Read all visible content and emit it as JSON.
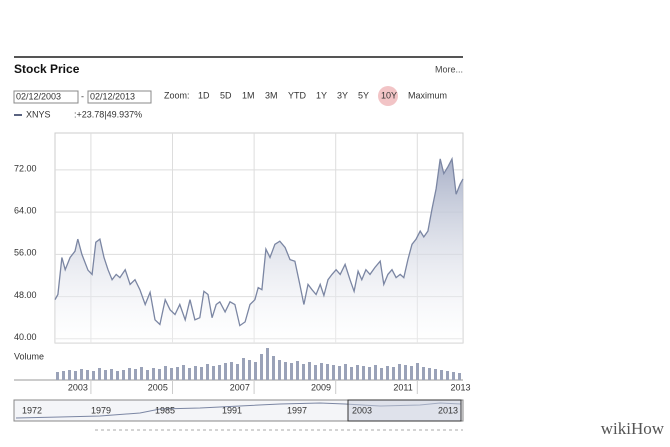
{
  "header": {
    "title": "Stock Price",
    "more": "More..."
  },
  "controls": {
    "start_date": "02/12/2003",
    "separator": "-",
    "end_date": "02/12/2013",
    "zoom_label": "Zoom:",
    "zoom_options": [
      "1D",
      "5D",
      "1M",
      "3M",
      "YTD",
      "1Y",
      "3Y",
      "5Y",
      "10Y",
      "Maximum"
    ],
    "selected_zoom": "10Y"
  },
  "chart_data": {
    "type": "area",
    "legend_change": ":+23.78|49.937%",
    "legend_change_color": "#3a9a3a",
    "x": [
      2003.12,
      2003.19,
      2003.29,
      2003.37,
      2003.49,
      2003.61,
      2003.68,
      2003.78,
      2003.93,
      2004.03,
      2004.12,
      2004.22,
      2004.32,
      2004.42,
      2004.52,
      2004.62,
      2004.71,
      2004.84,
      2004.96,
      2005.08,
      2005.2,
      2005.33,
      2005.45,
      2005.57,
      2005.69,
      2005.82,
      2005.94,
      2006.06,
      2006.18,
      2006.31,
      2006.43,
      2006.55,
      2006.67,
      2006.77,
      2006.87,
      2006.97,
      2007.07,
      2007.16,
      2007.29,
      2007.41,
      2007.53,
      2007.65,
      2007.78,
      2007.9,
      2008.02,
      2008.1,
      2008.19,
      2008.29,
      2008.39,
      2008.51,
      2008.63,
      2008.76,
      2008.88,
      2009.0,
      2009.12,
      2009.22,
      2009.32,
      2009.42,
      2009.52,
      2009.62,
      2009.71,
      2009.81,
      2009.91,
      2010.01,
      2010.11,
      2010.23,
      2010.35,
      2010.45,
      2010.55,
      2010.64,
      2010.74,
      2010.84,
      2010.96,
      2011.09,
      2011.18,
      2011.28,
      2011.38,
      2011.48,
      2011.58,
      2011.67,
      2011.77,
      2011.87,
      2011.97,
      2012.07,
      2012.16,
      2012.26,
      2012.36,
      2012.46,
      2012.56,
      2012.65,
      2012.75,
      2012.85,
      2012.95,
      2013.05,
      2013.12
    ],
    "series": [
      {
        "name": "XNYS",
        "color": "#7b86a3",
        "values": [
          47.4,
          48.4,
          55.4,
          53.1,
          55.4,
          56.6,
          58.9,
          56,
          53,
          52.2,
          58.3,
          58.9,
          55.4,
          53.1,
          51.2,
          52.2,
          51.6,
          53.1,
          50.3,
          51.2,
          49.3,
          46.5,
          48.8,
          43.6,
          42.7,
          47.4,
          45.5,
          44.6,
          46.5,
          43.6,
          47.4,
          43.6,
          44,
          49,
          48.4,
          44,
          46.5,
          47,
          45.1,
          47,
          46.5,
          42.5,
          43.2,
          46.5,
          47.4,
          49.7,
          49.3,
          57,
          55.4,
          57.9,
          58.5,
          57.3,
          55,
          54.7,
          50.3,
          46.5,
          50.3,
          49.3,
          48.4,
          50.3,
          48.2,
          51.2,
          52.2,
          53.1,
          52.2,
          54.1,
          51.2,
          49,
          52.8,
          51.2,
          53.1,
          52.2,
          53.5,
          54.7,
          50.3,
          52.2,
          53.1,
          51.6,
          52.2,
          51.6,
          55,
          57.9,
          58.9,
          60.4,
          59.3,
          60.4,
          64.6,
          68.4,
          74.1,
          71.3,
          72.6,
          74.1,
          67.4,
          69.3,
          70.3
        ]
      }
    ],
    "xlim": [
      2003.12,
      2013.12
    ],
    "ylim": [
      39.2,
      79
    ],
    "yticks": [
      {
        "value": 40,
        "label": "40.00"
      },
      {
        "value": 48,
        "label": "48.00"
      },
      {
        "value": 56,
        "label": "56.00"
      },
      {
        "value": 64,
        "label": "64.00"
      },
      {
        "value": 72,
        "label": "72.00"
      }
    ],
    "xticks": [
      {
        "value": 2003.68,
        "label": "2003"
      },
      {
        "value": 2005.64,
        "label": "2005"
      },
      {
        "value": 2007.65,
        "label": "2007"
      },
      {
        "value": 2009.64,
        "label": "2009"
      },
      {
        "value": 2011.65,
        "label": "2011"
      },
      {
        "value": 2013.06,
        "label": "2013"
      }
    ],
    "xgrid": [
      2004,
      2006,
      2008,
      2010,
      2012
    ],
    "grid": true,
    "volume": {
      "label": "Volume",
      "color": "#9aa2b8",
      "ylim": [
        0,
        35
      ],
      "values": [
        8,
        9,
        10,
        9,
        11,
        10,
        9,
        12,
        10,
        11,
        9,
        10,
        12,
        11,
        13,
        10,
        12,
        11,
        14,
        12,
        13,
        15,
        12,
        14,
        13,
        16,
        14,
        15,
        17,
        18,
        16,
        22,
        20,
        18,
        26,
        32,
        24,
        20,
        18,
        17,
        19,
        16,
        18,
        15,
        17,
        16,
        15,
        14,
        16,
        13,
        15,
        14,
        13,
        15,
        12,
        14,
        13,
        16,
        15,
        14,
        17,
        13,
        12,
        11,
        10,
        9,
        8,
        7
      ]
    }
  },
  "navigator": {
    "labels": [
      "1972",
      "1979",
      "1985",
      "1991",
      "1997",
      "2003",
      "2013"
    ]
  },
  "watermark": "wikiHow"
}
